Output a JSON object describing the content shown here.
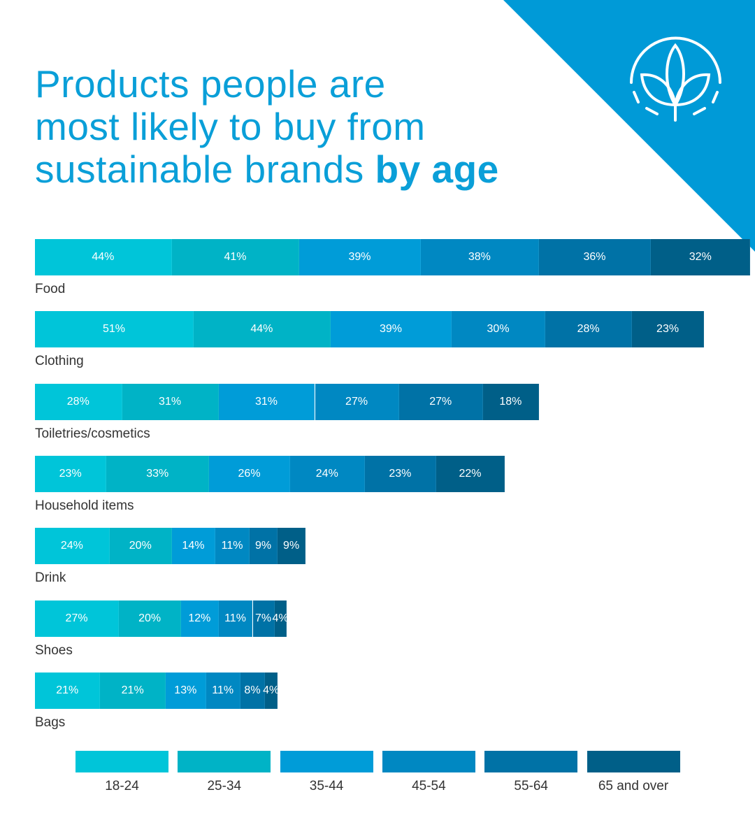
{
  "title": {
    "line1": "Products people are",
    "line2": "most likely to buy from",
    "line3_regular": "sustainable brands ",
    "line3_bold": "by age"
  },
  "colors": {
    "accent": "#009ad7",
    "title": "#0a9fd8"
  },
  "logo": {
    "icon": "leaf-circle-icon"
  },
  "chart_data": {
    "type": "bar",
    "orientation": "horizontal-stacked",
    "title": "Products people are most likely to buy from sustainable brands by age",
    "categories": [
      "Food",
      "Clothing",
      "Toiletries/cosmetics",
      "Household items",
      "Drink",
      "Shoes",
      "Bags"
    ],
    "series": [
      {
        "name": "18-24",
        "color": "#00c5d9",
        "values": [
          44,
          51,
          28,
          23,
          24,
          27,
          21
        ]
      },
      {
        "name": "25-34",
        "color": "#00b3c6",
        "values": [
          41,
          44,
          31,
          33,
          20,
          20,
          21
        ]
      },
      {
        "name": "35-44",
        "color": "#009cd8",
        "values": [
          39,
          39,
          31,
          26,
          14,
          12,
          13
        ]
      },
      {
        "name": "45-54",
        "color": "#0088c2",
        "values": [
          38,
          30,
          27,
          24,
          11,
          11,
          11
        ]
      },
      {
        "name": "55-64",
        "color": "#0072a6",
        "values": [
          36,
          28,
          27,
          23,
          9,
          7,
          8
        ]
      },
      {
        "name": "65 and over",
        "color": "#005f88",
        "values": [
          32,
          23,
          18,
          22,
          9,
          4,
          4
        ]
      }
    ],
    "value_suffix": "%",
    "legend": "bottom"
  }
}
